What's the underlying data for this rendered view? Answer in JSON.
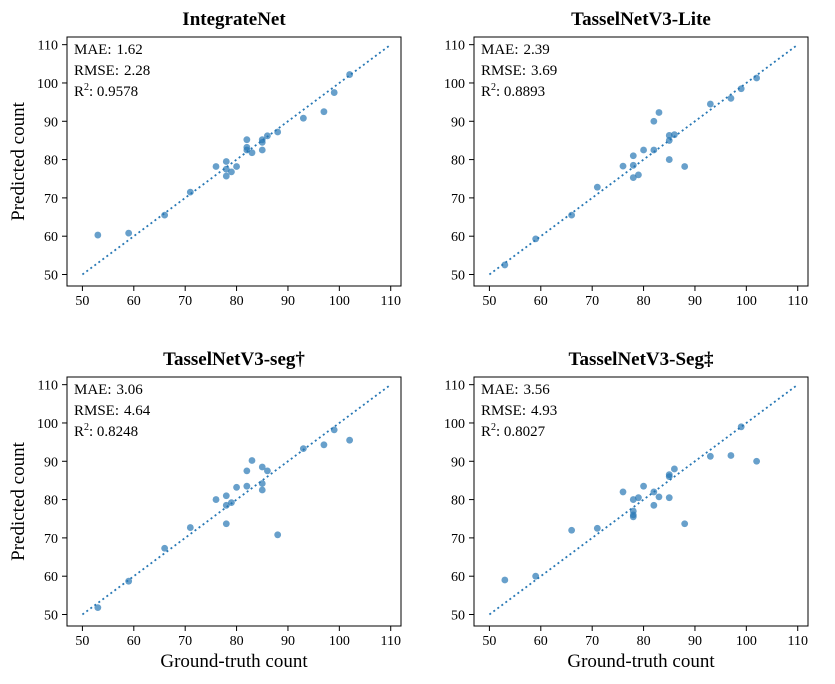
{
  "colors": {
    "point": "#2878b5",
    "line": "#2878b5",
    "frame": "#000000"
  },
  "chart_data": [
    {
      "type": "scatter",
      "title": "IntegrateNet",
      "xlabel": "",
      "ylabel": "Predicted count",
      "xlim": [
        47,
        112
      ],
      "ylim": [
        47,
        112
      ],
      "xticks": [
        50,
        60,
        70,
        80,
        90,
        100,
        110
      ],
      "yticks": [
        50,
        60,
        70,
        80,
        90,
        100,
        110
      ],
      "reference_line": "y = x (dotted)",
      "metrics": [
        {
          "label": "MAE:",
          "sup": "",
          "value": "1.62"
        },
        {
          "label": "RMSE:",
          "sup": "",
          "value": "2.28"
        },
        {
          "label": "R",
          "sup": "2",
          "value": ": 0.9578"
        }
      ],
      "x": [
        53,
        59,
        66,
        71,
        76,
        78,
        78,
        78,
        79,
        80,
        82,
        82,
        82,
        83,
        85,
        85,
        85,
        86,
        88,
        93,
        97,
        99,
        102
      ],
      "y": [
        60.3,
        60.8,
        65.5,
        71.5,
        78.2,
        79.5,
        77.5,
        75.7,
        76.8,
        78.2,
        85.2,
        82.5,
        83.2,
        81.8,
        84.5,
        82.5,
        85.2,
        86.2,
        87.2,
        90.8,
        92.5,
        97.5,
        102.2
      ]
    },
    {
      "type": "scatter",
      "title": "TasselNetV3-Lite",
      "xlabel": "",
      "ylabel": "",
      "xlim": [
        47,
        112
      ],
      "ylim": [
        47,
        112
      ],
      "xticks": [
        50,
        60,
        70,
        80,
        90,
        100,
        110
      ],
      "yticks": [
        50,
        60,
        70,
        80,
        90,
        100,
        110
      ],
      "reference_line": "y = x (dotted)",
      "metrics": [
        {
          "label": "MAE:",
          "sup": "",
          "value": "2.39"
        },
        {
          "label": "RMSE:",
          "sup": "",
          "value": "3.69"
        },
        {
          "label": "R",
          "sup": "2",
          "value": ": 0.8893"
        }
      ],
      "x": [
        53,
        59,
        66,
        71,
        76,
        78,
        78,
        78,
        79,
        80,
        82,
        82,
        83,
        85,
        85,
        85,
        86,
        88,
        93,
        97,
        99,
        102
      ],
      "y": [
        52.5,
        59.3,
        65.5,
        72.8,
        78.3,
        81.0,
        78.5,
        75.3,
        76.0,
        82.5,
        90.0,
        82.5,
        92.3,
        86.3,
        85.0,
        80.0,
        86.5,
        78.2,
        94.5,
        96.0,
        98.5,
        101.3
      ]
    },
    {
      "type": "scatter",
      "title": "TasselNetV3-seg†",
      "xlabel": "Ground-truth  count",
      "ylabel": "Predicted count",
      "xlim": [
        47,
        112
      ],
      "ylim": [
        47,
        112
      ],
      "xticks": [
        50,
        60,
        70,
        80,
        90,
        100,
        110
      ],
      "yticks": [
        50,
        60,
        70,
        80,
        90,
        100,
        110
      ],
      "reference_line": "y = x (dotted)",
      "metrics": [
        {
          "label": "MAE:",
          "sup": "",
          "value": "3.06"
        },
        {
          "label": "RMSE:",
          "sup": "",
          "value": "4.64"
        },
        {
          "label": "R",
          "sup": "2",
          "value": ": 0.8248"
        }
      ],
      "x": [
        53,
        59,
        66,
        71,
        76,
        78,
        78,
        78,
        79,
        80,
        82,
        82,
        83,
        85,
        85,
        85,
        86,
        88,
        93,
        97,
        99,
        102
      ],
      "y": [
        51.8,
        58.7,
        67.3,
        72.7,
        80.0,
        81.0,
        78.5,
        73.7,
        79.2,
        83.2,
        87.5,
        83.5,
        90.2,
        88.5,
        84.2,
        82.5,
        87.5,
        70.8,
        93.3,
        94.3,
        98.2,
        95.5
      ]
    },
    {
      "type": "scatter",
      "title": "TasselNetV3-Seg‡",
      "xlabel": "Ground-truth  count",
      "ylabel": "",
      "xlim": [
        47,
        112
      ],
      "ylim": [
        47,
        112
      ],
      "xticks": [
        50,
        60,
        70,
        80,
        90,
        100,
        110
      ],
      "yticks": [
        50,
        60,
        70,
        80,
        90,
        100,
        110
      ],
      "reference_line": "y = x (dotted)",
      "metrics": [
        {
          "label": "MAE:",
          "sup": "",
          "value": "3.56"
        },
        {
          "label": "RMSE:",
          "sup": "",
          "value": "4.93"
        },
        {
          "label": "R",
          "sup": "2",
          "value": ": 0.8027"
        }
      ],
      "x": [
        53,
        59,
        66,
        71,
        76,
        78,
        78,
        78,
        78,
        79,
        80,
        82,
        82,
        83,
        85,
        85,
        85,
        86,
        88,
        93,
        97,
        99,
        102
      ],
      "y": [
        59.0,
        60.0,
        72.0,
        72.5,
        82.0,
        80.0,
        77.0,
        76.0,
        75.5,
        80.5,
        83.5,
        82.0,
        78.5,
        80.7,
        86.5,
        86.0,
        80.5,
        88.0,
        73.7,
        91.3,
        91.5,
        99.0,
        90.0
      ]
    }
  ]
}
